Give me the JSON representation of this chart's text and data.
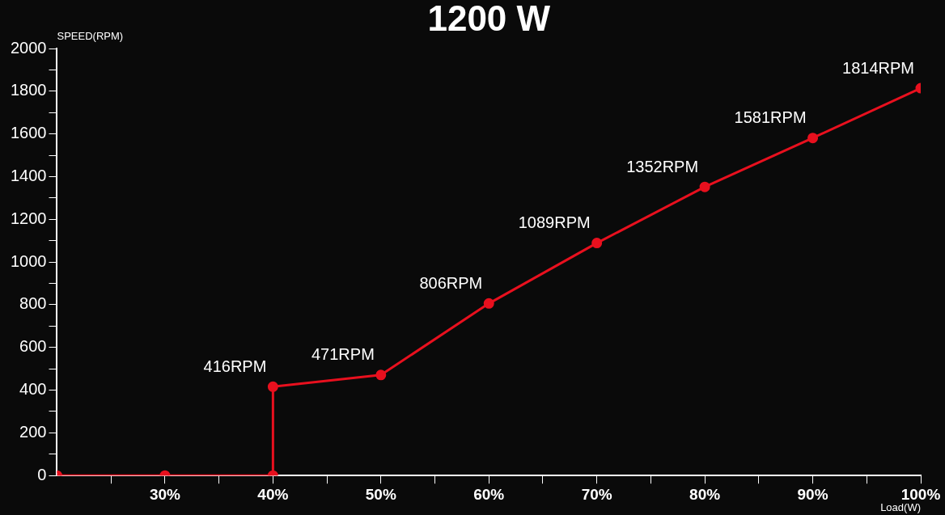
{
  "chart_data": {
    "type": "line",
    "title": "1200 W",
    "xlabel": "Load(W)",
    "ylabel": "SPEED(RPM)",
    "x": [
      20,
      30,
      40,
      40,
      50,
      60,
      70,
      80,
      90,
      100
    ],
    "values": [
      0,
      0,
      0,
      416,
      471,
      806,
      1089,
      1352,
      1581,
      1814
    ],
    "value_labels": [
      null,
      null,
      null,
      "416RPM",
      "471RPM",
      "806RPM",
      "1089RPM",
      "1352RPM",
      "1581RPM",
      "1814RPM"
    ],
    "color": "#e8101e",
    "marker": "circle",
    "xlim": [
      20,
      100
    ],
    "xticks": [
      {
        "value": 25,
        "label": null
      },
      {
        "value": 30,
        "label": "30%"
      },
      {
        "value": 35,
        "label": null
      },
      {
        "value": 40,
        "label": "40%"
      },
      {
        "value": 45,
        "label": null
      },
      {
        "value": 50,
        "label": "50%"
      },
      {
        "value": 55,
        "label": null
      },
      {
        "value": 60,
        "label": "60%"
      },
      {
        "value": 65,
        "label": null
      },
      {
        "value": 70,
        "label": "70%"
      },
      {
        "value": 75,
        "label": null
      },
      {
        "value": 80,
        "label": "80%"
      },
      {
        "value": 85,
        "label": null
      },
      {
        "value": 90,
        "label": "90%"
      },
      {
        "value": 95,
        "label": null
      },
      {
        "value": 100,
        "label": "100%"
      }
    ],
    "ylim": [
      0,
      2000
    ],
    "yticks": [
      0,
      {
        "value": 100,
        "label": null
      },
      200,
      {
        "value": 300,
        "label": null
      },
      400,
      {
        "value": 500,
        "label": null
      },
      600,
      {
        "value": 700,
        "label": null
      },
      800,
      {
        "value": 900,
        "label": null
      },
      1000,
      {
        "value": 1100,
        "label": null
      },
      1200,
      {
        "value": 1300,
        "label": null
      },
      1400,
      {
        "value": 1500,
        "label": null
      },
      1600,
      {
        "value": 1700,
        "label": null
      },
      1800,
      {
        "value": 1900,
        "label": null
      },
      2000
    ]
  }
}
